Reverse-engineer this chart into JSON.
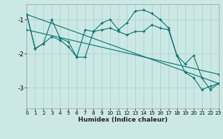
{
  "xlabel": "Humidex (Indice chaleur)",
  "bg_color": "#cce8e4",
  "grid_color": "#aad4d0",
  "line_color": "#007070",
  "xlim": [
    0,
    23
  ],
  "ylim": [
    -3.6,
    -0.55
  ],
  "yticks": [
    -3,
    -2,
    -1
  ],
  "xticks": [
    0,
    1,
    2,
    3,
    4,
    5,
    6,
    7,
    8,
    9,
    10,
    11,
    12,
    13,
    14,
    15,
    16,
    17,
    18,
    19,
    20,
    21,
    22,
    23
  ],
  "series": [
    {
      "x": [
        0,
        1,
        2,
        3,
        4,
        5,
        6,
        7,
        8,
        9,
        10,
        11,
        12,
        13,
        14,
        15,
        16,
        17,
        18,
        19,
        20,
        21,
        22,
        23
      ],
      "y": [
        -0.85,
        -1.85,
        -1.7,
        -1.0,
        -1.55,
        -1.65,
        -2.1,
        -1.3,
        -1.35,
        -1.1,
        -1.0,
        -1.3,
        -1.1,
        -0.75,
        -0.72,
        -0.82,
        -1.0,
        -1.25,
        -2.05,
        -2.55,
        -2.7,
        -3.05,
        -2.95,
        -2.87
      ]
    },
    {
      "x": [
        0,
        1,
        2,
        3,
        4,
        5,
        6,
        7,
        8,
        9,
        10,
        11,
        12,
        13,
        14,
        15,
        16,
        17,
        18,
        19,
        20,
        21,
        22,
        23
      ],
      "y": [
        -0.85,
        -1.85,
        -1.7,
        -1.5,
        -1.6,
        -1.8,
        -2.1,
        -2.1,
        -1.35,
        -1.3,
        -1.25,
        -1.35,
        -1.45,
        -1.35,
        -1.35,
        -1.15,
        -1.25,
        -1.3,
        -2.05,
        -2.3,
        -2.05,
        -2.7,
        -3.05,
        -2.87
      ]
    },
    {
      "x": [
        0,
        23
      ],
      "y": [
        -0.85,
        -2.87
      ]
    },
    {
      "x": [
        0,
        23
      ],
      "y": [
        -1.3,
        -2.6
      ]
    }
  ]
}
